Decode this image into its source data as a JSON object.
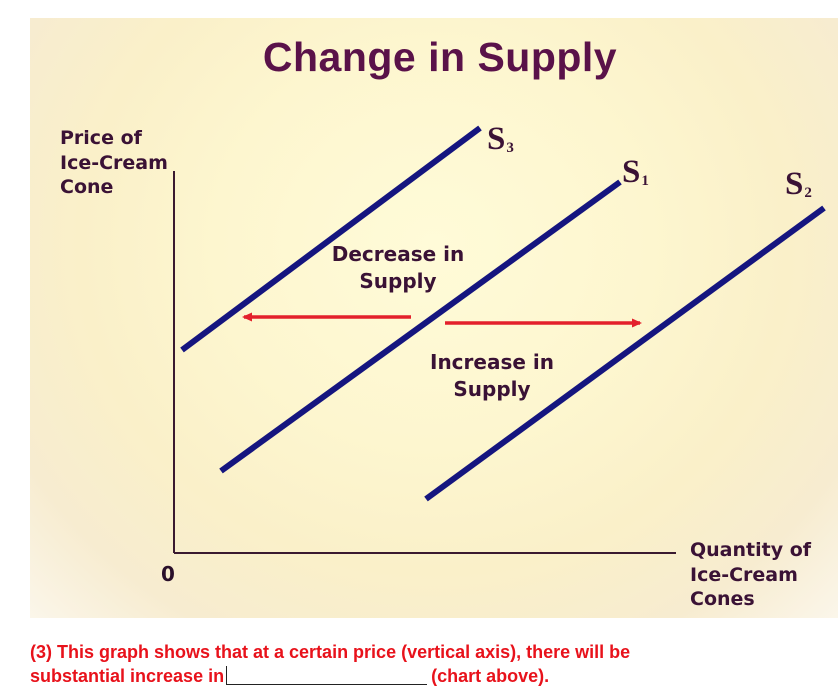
{
  "title": "Change in Supply",
  "y_axis_label": [
    "Price of",
    "Ice-Cream",
    "Cone"
  ],
  "x_axis_label": [
    "Quantity of",
    "Ice-Cream",
    "Cones"
  ],
  "origin_label": "0",
  "curves": [
    {
      "letter": "S",
      "subscript": "3"
    },
    {
      "letter": "S",
      "subscript": "1"
    },
    {
      "letter": "S",
      "subscript": "2"
    }
  ],
  "shifts": {
    "decrease": [
      "Decrease in",
      "Supply"
    ],
    "increase": [
      "Increase in",
      "Supply"
    ]
  },
  "colors": {
    "title": "#5a1249",
    "curve": "#15157f",
    "arrow": "#e3202b",
    "axis": "#3a1a30",
    "question": "#e8121b"
  },
  "question": {
    "line1": "(3)   This graph shows that at a certain price (vertical axis), there will be",
    "line2_before": "substantial increase in",
    "line2_after": "(chart above)."
  }
}
